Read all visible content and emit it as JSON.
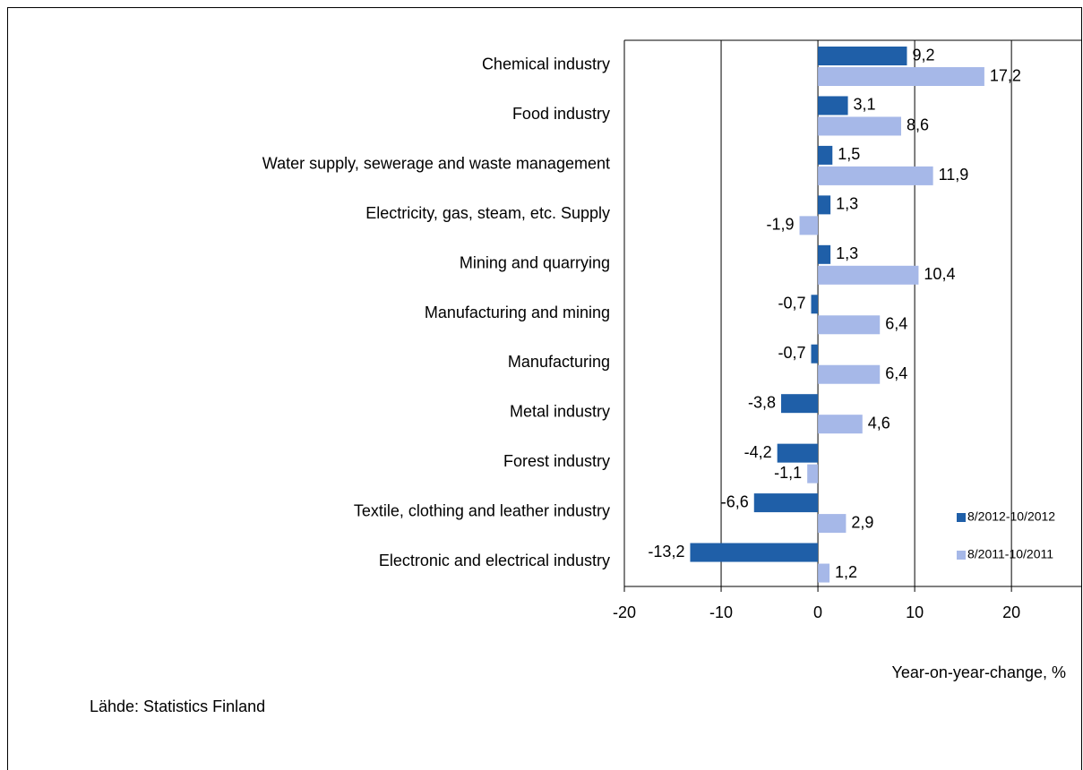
{
  "chart_data": {
    "type": "bar",
    "orientation": "horizontal",
    "categories": [
      "Chemical industry",
      "Food industry",
      "Water supply, sewerage and waste management",
      "Electricity, gas, steam, etc. Supply",
      "Mining and quarrying",
      "Manufacturing and mining",
      "Manufacturing",
      "Metal industry",
      "Forest industry",
      "Textile, clothing and leather industry",
      "Electronic and electrical industry"
    ],
    "series": [
      {
        "name": "8/2012-10/2012",
        "color": "#1f5fa8",
        "values": [
          9.2,
          3.1,
          1.5,
          1.3,
          1.3,
          -0.7,
          -0.7,
          -3.8,
          -4.2,
          -6.6,
          -13.2
        ],
        "value_labels": [
          "9,2",
          "3,1",
          "1,5",
          "1,3",
          "1,3",
          "-0,7",
          "-0,7",
          "-3,8",
          "-4,2",
          "-6,6",
          "-13,2"
        ]
      },
      {
        "name": "8/2011-10/2011",
        "color": "#a6b8e8",
        "values": [
          17.2,
          8.6,
          11.9,
          -1.9,
          10.4,
          6.4,
          6.4,
          4.6,
          -1.1,
          2.9,
          1.2
        ],
        "value_labels": [
          "17,2",
          "8,6",
          "11,9",
          "-1,9",
          "10,4",
          "6,4",
          "6,4",
          "4,6",
          "-1,1",
          "2,9",
          "1,2"
        ]
      }
    ],
    "xlim": [
      -20,
      27.3
    ],
    "xticks": [
      -20,
      -10,
      0,
      10,
      20
    ],
    "x_label": "Year-on-year-change, %",
    "source": "Lähde: Statistics Finland",
    "grid": true,
    "legend": "lower right"
  }
}
